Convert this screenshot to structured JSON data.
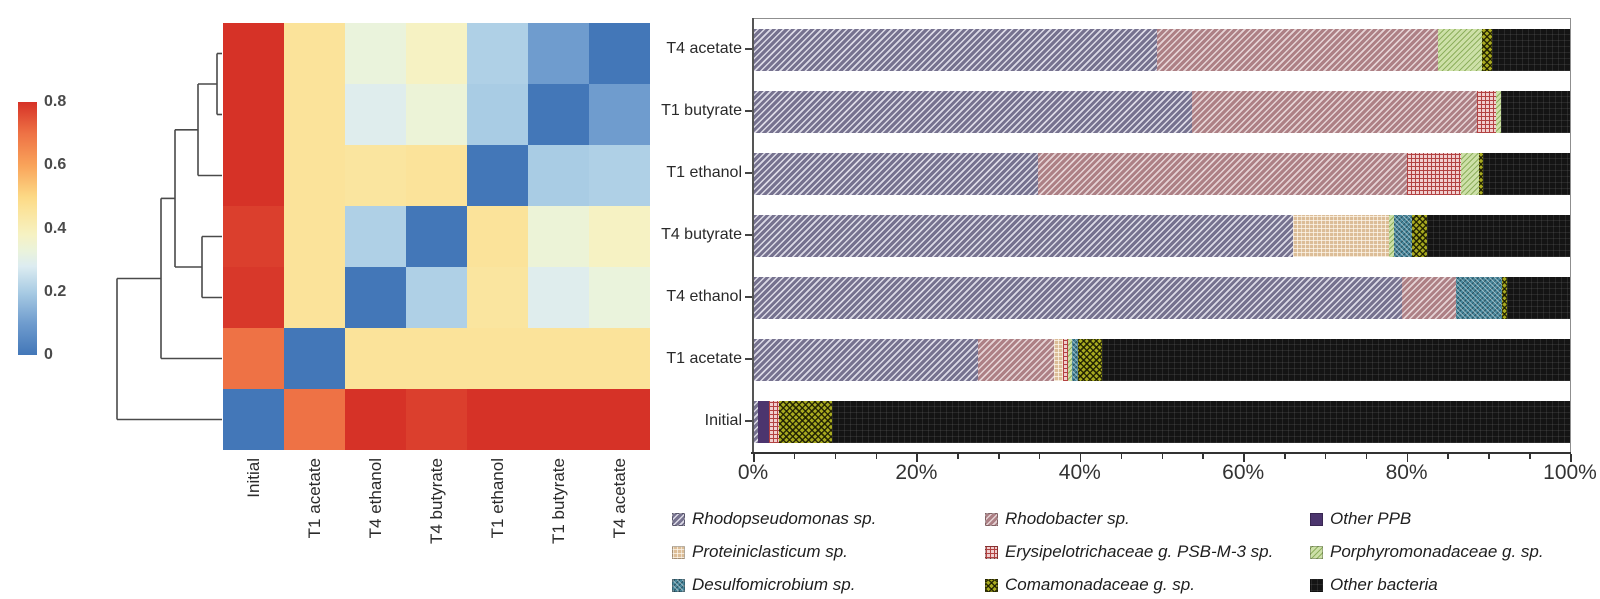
{
  "chart_data": [
    {
      "type": "heatmap",
      "title": "",
      "rows": [
        "T4 acetate",
        "T1 butyrate",
        "T1 ethanol",
        "T4 butyrate",
        "T4 ethanol",
        "T1 acetate",
        "Initial"
      ],
      "cols": [
        "Initial",
        "T1 acetate",
        "T4 ethanol",
        "T4 butyrate",
        "T1 ethanol",
        "T1 butyrate",
        "T4 acetate"
      ],
      "values": [
        [
          0.8,
          0.46,
          0.33,
          0.38,
          0.21,
          0.1,
          0.0
        ],
        [
          0.8,
          0.46,
          0.29,
          0.34,
          0.2,
          0.0,
          0.1
        ],
        [
          0.8,
          0.46,
          0.45,
          0.46,
          0.0,
          0.2,
          0.21
        ],
        [
          0.78,
          0.46,
          0.21,
          0.0,
          0.46,
          0.34,
          0.38
        ],
        [
          0.79,
          0.46,
          0.0,
          0.21,
          0.45,
          0.29,
          0.33
        ],
        [
          0.7,
          0.0,
          0.46,
          0.46,
          0.46,
          0.46,
          0.46
        ],
        [
          0.0,
          0.7,
          0.8,
          0.78,
          0.8,
          0.8,
          0.8
        ]
      ],
      "colorbar": {
        "ticks": [
          "0.8",
          "0.6",
          "0.4",
          "0.2",
          "0"
        ],
        "min": 0,
        "max": 0.8
      },
      "colormap": [
        [
          0.0,
          "#4377b8"
        ],
        [
          0.1,
          "#6f9cce"
        ],
        [
          0.2,
          "#a9cce4"
        ],
        [
          0.28,
          "#dcecf1"
        ],
        [
          0.33,
          "#eaf3dc"
        ],
        [
          0.38,
          "#f6f2c3"
        ],
        [
          0.46,
          "#fbe39a"
        ],
        [
          0.5,
          "#fcd985"
        ],
        [
          0.6,
          "#f9a35a"
        ],
        [
          0.7,
          "#ee7245"
        ],
        [
          0.8,
          "#d63227"
        ]
      ],
      "dendrogram_links": [
        [
          217,
          53.5,
          222,
          53.5
        ],
        [
          217,
          114.5,
          222,
          114.5
        ],
        [
          217,
          53.5,
          217,
          114.5
        ],
        [
          198,
          84,
          217,
          84
        ],
        [
          198,
          175.5,
          222,
          175.5
        ],
        [
          198,
          84,
          198,
          175.5
        ],
        [
          202,
          236.5,
          222,
          236.5
        ],
        [
          202,
          297.5,
          222,
          297.5
        ],
        [
          202,
          236.5,
          202,
          297.5
        ],
        [
          175,
          129.8,
          198,
          129.8
        ],
        [
          175,
          267,
          202,
          267
        ],
        [
          175,
          129.8,
          175,
          267
        ],
        [
          161,
          198.4,
          175,
          198.4
        ],
        [
          161,
          358.5,
          222,
          358.5
        ],
        [
          161,
          198.4,
          161,
          358.5
        ],
        [
          117,
          278.5,
          161,
          278.5
        ],
        [
          117,
          419.5,
          222,
          419.5
        ],
        [
          117,
          278.5,
          117,
          419.5
        ]
      ]
    },
    {
      "type": "bar",
      "orientation": "horizontal",
      "stacked": true,
      "xlim": [
        0,
        100
      ],
      "x_tick_labels": [
        "0%",
        "20%",
        "40%",
        "60%",
        "80%",
        "100%"
      ],
      "minor_tick_step": 5,
      "categories": [
        "T4 acetate",
        "T1 butyrate",
        "T1 ethanol",
        "T4 butyrate",
        "T4 ethanol",
        "T1 acetate",
        "Initial"
      ],
      "series": [
        {
          "id": "rhodopseudomonas",
          "name": "Rhodopseudomonas sp.",
          "values": [
            49.4,
            53.7,
            34.9,
            66.1,
            79.4,
            27.5,
            0.6
          ]
        },
        {
          "id": "rhodobacter",
          "name": "Rhodobacter sp.",
          "values": [
            34.4,
            34.9,
            45.2,
            0,
            6.7,
            9.4,
            0
          ]
        },
        {
          "id": "other_ppb",
          "name": "Other PPB",
          "values": [
            0,
            0,
            0,
            0,
            0,
            0,
            1.3
          ]
        },
        {
          "id": "proteiniclasticum",
          "name": "Proteiniclasticum sp.",
          "values": [
            0,
            0,
            0,
            11.8,
            0,
            1.0,
            0
          ]
        },
        {
          "id": "erysipelotrichaceae",
          "name": "Erysipelotrichaceae g. PSB-M-3 sp.",
          "values": [
            0,
            2.4,
            6.6,
            0,
            0,
            0.6,
            1.3
          ]
        },
        {
          "id": "porphyromonadaceae",
          "name": "Porphyromonadaceae g. sp.",
          "values": [
            5.4,
            0.6,
            2.2,
            0.6,
            0,
            0.5,
            0
          ]
        },
        {
          "id": "desulfomicrobium",
          "name": "Desulfomicrobium sp.",
          "values": [
            0,
            0,
            0,
            2.2,
            5.6,
            0.8,
            0
          ]
        },
        {
          "id": "comamonadaceae",
          "name": "Comamonadaceae g. sp.",
          "values": [
            1.2,
            0,
            0.4,
            1.8,
            0.6,
            2.9,
            6.5
          ]
        },
        {
          "id": "other_bacteria",
          "name": "Other bacteria",
          "values": [
            9.6,
            8.4,
            10.7,
            17.5,
            7.7,
            57.3,
            90.3
          ]
        }
      ]
    }
  ],
  "legend": {
    "items": [
      {
        "id": "rhodopseudomonas",
        "label": "Rhodopseudomonas sp."
      },
      {
        "id": "rhodobacter",
        "label": "Rhodobacter sp."
      },
      {
        "id": "other_ppb",
        "label": "Other PPB"
      },
      {
        "id": "proteiniclasticum",
        "label": "Proteiniclasticum sp."
      },
      {
        "id": "erysipelotrichaceae",
        "label": "Erysipelotrichaceae g. PSB-M-3 sp."
      },
      {
        "id": "porphyromonadaceae",
        "label": "Porphyromonadaceae g. sp."
      },
      {
        "id": "desulfomicrobium",
        "label": "Desulfomicrobium sp."
      },
      {
        "id": "comamonadaceae",
        "label": "Comamonadaceae g. sp."
      },
      {
        "id": "other_bacteria",
        "label": "Other bacteria"
      }
    ]
  }
}
